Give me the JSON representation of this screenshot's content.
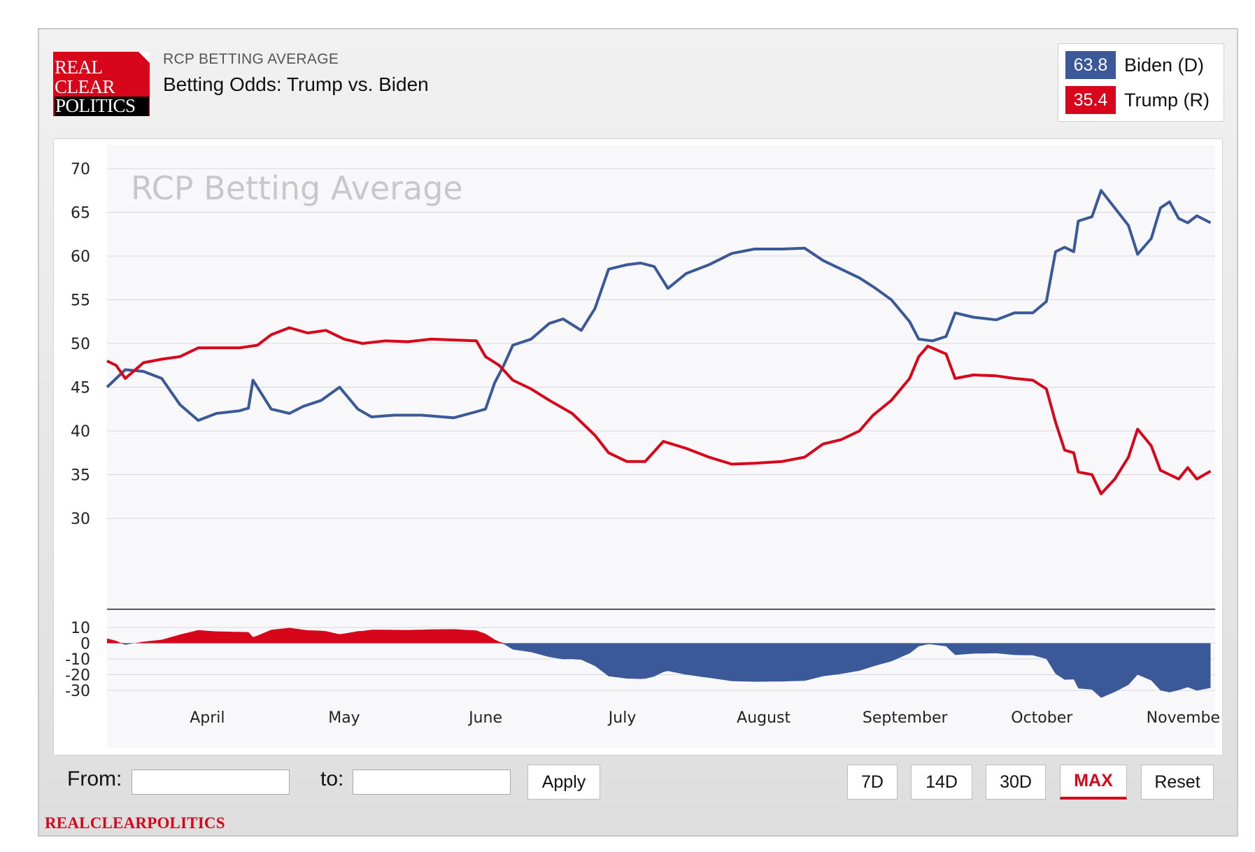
{
  "header": {
    "logo_lines": [
      "REAL",
      "CLEAR",
      "POLITICS"
    ],
    "kicker": "RCP BETTING AVERAGE",
    "title": "Betting Odds: Trump vs. Biden"
  },
  "legend": [
    {
      "value": "63.8",
      "name": "Biden (D)",
      "color": "#3b5998"
    },
    {
      "value": "35.4",
      "name": "Trump (R)",
      "color": "#d8061b"
    }
  ],
  "chart_data": {
    "type": "line",
    "watermark": "RCP Betting Average",
    "x_start": "2020-03-10",
    "x_end": "2020-11-08",
    "month_labels": [
      {
        "label": "April",
        "date": "2020-04-01"
      },
      {
        "label": "May",
        "date": "2020-05-01"
      },
      {
        "label": "June",
        "date": "2020-06-01"
      },
      {
        "label": "July",
        "date": "2020-07-01"
      },
      {
        "label": "August",
        "date": "2020-08-01"
      },
      {
        "label": "September",
        "date": "2020-09-01"
      },
      {
        "label": "October",
        "date": "2020-10-01"
      },
      {
        "label": "Novembe",
        "date": "2020-11-01"
      }
    ],
    "y_ticks": [
      30,
      35,
      40,
      45,
      50,
      55,
      60,
      65,
      70
    ],
    "ylim": [
      30,
      70
    ],
    "spread_ticks": [
      10,
      0,
      -10,
      -20,
      -30
    ],
    "spread_ylim": [
      -30,
      10
    ],
    "grid": true,
    "series": [
      {
        "name": "Biden (D)",
        "color": "#3b5998",
        "points": [
          [
            "2020-03-10",
            45.0
          ],
          [
            "2020-03-14",
            47.0
          ],
          [
            "2020-03-18",
            46.8
          ],
          [
            "2020-03-22",
            46.0
          ],
          [
            "2020-03-26",
            43.0
          ],
          [
            "2020-03-30",
            41.2
          ],
          [
            "2020-04-03",
            42.0
          ],
          [
            "2020-04-08",
            42.3
          ],
          [
            "2020-04-10",
            42.6
          ],
          [
            "2020-04-11",
            45.8
          ],
          [
            "2020-04-15",
            42.5
          ],
          [
            "2020-04-19",
            42.0
          ],
          [
            "2020-04-22",
            42.8
          ],
          [
            "2020-04-26",
            43.5
          ],
          [
            "2020-04-30",
            45.0
          ],
          [
            "2020-05-04",
            42.5
          ],
          [
            "2020-05-07",
            41.6
          ],
          [
            "2020-05-12",
            41.8
          ],
          [
            "2020-05-18",
            41.8
          ],
          [
            "2020-05-25",
            41.5
          ],
          [
            "2020-05-30",
            42.2
          ],
          [
            "2020-06-01",
            42.5
          ],
          [
            "2020-06-03",
            45.5
          ],
          [
            "2020-06-05",
            47.5
          ],
          [
            "2020-06-07",
            49.8
          ],
          [
            "2020-06-11",
            50.5
          ],
          [
            "2020-06-15",
            52.3
          ],
          [
            "2020-06-18",
            52.8
          ],
          [
            "2020-06-22",
            51.5
          ],
          [
            "2020-06-25",
            54.0
          ],
          [
            "2020-06-28",
            58.5
          ],
          [
            "2020-07-02",
            59.0
          ],
          [
            "2020-07-05",
            59.2
          ],
          [
            "2020-07-08",
            58.8
          ],
          [
            "2020-07-11",
            56.3
          ],
          [
            "2020-07-15",
            58.0
          ],
          [
            "2020-07-20",
            59.0
          ],
          [
            "2020-07-25",
            60.3
          ],
          [
            "2020-07-30",
            60.8
          ],
          [
            "2020-08-05",
            60.8
          ],
          [
            "2020-08-10",
            60.9
          ],
          [
            "2020-08-14",
            59.5
          ],
          [
            "2020-08-18",
            58.5
          ],
          [
            "2020-08-22",
            57.5
          ],
          [
            "2020-08-25",
            56.5
          ],
          [
            "2020-08-29",
            55.0
          ],
          [
            "2020-09-02",
            52.5
          ],
          [
            "2020-09-04",
            50.5
          ],
          [
            "2020-09-07",
            50.3
          ],
          [
            "2020-09-10",
            50.8
          ],
          [
            "2020-09-12",
            53.5
          ],
          [
            "2020-09-16",
            53.0
          ],
          [
            "2020-09-21",
            52.7
          ],
          [
            "2020-09-25",
            53.5
          ],
          [
            "2020-09-29",
            53.5
          ],
          [
            "2020-10-02",
            54.8
          ],
          [
            "2020-10-04",
            60.5
          ],
          [
            "2020-10-06",
            61.0
          ],
          [
            "2020-10-08",
            60.5
          ],
          [
            "2020-10-09",
            64.0
          ],
          [
            "2020-10-12",
            64.5
          ],
          [
            "2020-10-14",
            67.5
          ],
          [
            "2020-10-17",
            65.5
          ],
          [
            "2020-10-20",
            63.5
          ],
          [
            "2020-10-22",
            60.2
          ],
          [
            "2020-10-25",
            62.0
          ],
          [
            "2020-10-27",
            65.5
          ],
          [
            "2020-10-29",
            66.2
          ],
          [
            "2020-10-31",
            64.3
          ],
          [
            "2020-11-02",
            63.8
          ],
          [
            "2020-11-04",
            64.6
          ],
          [
            "2020-11-07",
            63.8
          ]
        ]
      },
      {
        "name": "Trump (R)",
        "color": "#d8061b",
        "points": [
          [
            "2020-03-10",
            48.0
          ],
          [
            "2020-03-12",
            47.5
          ],
          [
            "2020-03-14",
            46.0
          ],
          [
            "2020-03-18",
            47.8
          ],
          [
            "2020-03-22",
            48.2
          ],
          [
            "2020-03-26",
            48.5
          ],
          [
            "2020-03-30",
            49.5
          ],
          [
            "2020-04-03",
            49.5
          ],
          [
            "2020-04-08",
            49.5
          ],
          [
            "2020-04-12",
            49.8
          ],
          [
            "2020-04-15",
            51.0
          ],
          [
            "2020-04-19",
            51.8
          ],
          [
            "2020-04-23",
            51.2
          ],
          [
            "2020-04-27",
            51.5
          ],
          [
            "2020-05-01",
            50.5
          ],
          [
            "2020-05-05",
            50.0
          ],
          [
            "2020-05-10",
            50.3
          ],
          [
            "2020-05-15",
            50.2
          ],
          [
            "2020-05-20",
            50.5
          ],
          [
            "2020-05-25",
            50.4
          ],
          [
            "2020-05-30",
            50.3
          ],
          [
            "2020-06-01",
            48.5
          ],
          [
            "2020-06-04",
            47.5
          ],
          [
            "2020-06-07",
            45.8
          ],
          [
            "2020-06-11",
            44.8
          ],
          [
            "2020-06-15",
            43.5
          ],
          [
            "2020-06-20",
            42.0
          ],
          [
            "2020-06-25",
            39.5
          ],
          [
            "2020-06-28",
            37.5
          ],
          [
            "2020-07-02",
            36.5
          ],
          [
            "2020-07-06",
            36.5
          ],
          [
            "2020-07-10",
            38.8
          ],
          [
            "2020-07-15",
            38.0
          ],
          [
            "2020-07-20",
            37.0
          ],
          [
            "2020-07-25",
            36.2
          ],
          [
            "2020-07-30",
            36.3
          ],
          [
            "2020-08-05",
            36.5
          ],
          [
            "2020-08-10",
            37.0
          ],
          [
            "2020-08-14",
            38.5
          ],
          [
            "2020-08-18",
            39.0
          ],
          [
            "2020-08-22",
            40.0
          ],
          [
            "2020-08-25",
            41.8
          ],
          [
            "2020-08-29",
            43.5
          ],
          [
            "2020-09-02",
            46.0
          ],
          [
            "2020-09-04",
            48.5
          ],
          [
            "2020-09-06",
            49.7
          ],
          [
            "2020-09-10",
            48.8
          ],
          [
            "2020-09-12",
            46.0
          ],
          [
            "2020-09-16",
            46.4
          ],
          [
            "2020-09-21",
            46.3
          ],
          [
            "2020-09-25",
            46.0
          ],
          [
            "2020-09-29",
            45.8
          ],
          [
            "2020-10-02",
            44.8
          ],
          [
            "2020-10-04",
            41.0
          ],
          [
            "2020-10-06",
            37.8
          ],
          [
            "2020-10-08",
            37.5
          ],
          [
            "2020-10-09",
            35.3
          ],
          [
            "2020-10-12",
            35.0
          ],
          [
            "2020-10-14",
            32.8
          ],
          [
            "2020-10-17",
            34.5
          ],
          [
            "2020-10-20",
            37.0
          ],
          [
            "2020-10-22",
            40.2
          ],
          [
            "2020-10-25",
            38.3
          ],
          [
            "2020-10-27",
            35.5
          ],
          [
            "2020-10-29",
            35.0
          ],
          [
            "2020-10-31",
            34.5
          ],
          [
            "2020-11-02",
            35.8
          ],
          [
            "2020-11-04",
            34.5
          ],
          [
            "2020-11-07",
            35.4
          ]
        ]
      }
    ]
  },
  "controls": {
    "from_label": "From:",
    "to_label": "to:",
    "from_value": "",
    "to_value": "",
    "apply_label": "Apply",
    "ranges": [
      "7D",
      "14D",
      "30D",
      "MAX"
    ],
    "active_range": "MAX",
    "reset_label": "Reset"
  },
  "footer": {
    "brand": "REALCLEARPOLITICS"
  }
}
